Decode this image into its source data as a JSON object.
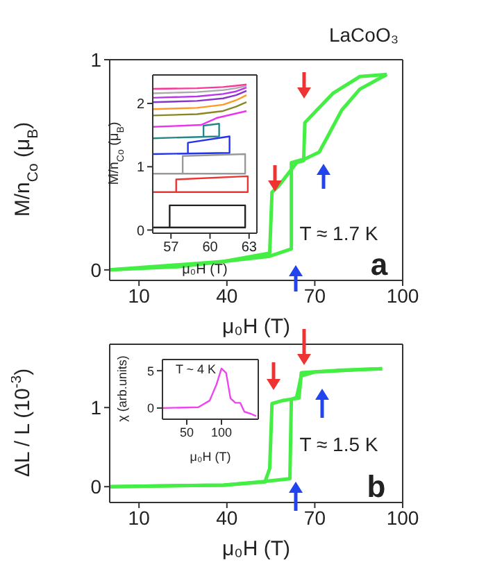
{
  "chart_data": [
    {
      "type": "line",
      "xlabel": "μ₀H (T)",
      "ylabel": "M/n$_{Co}$ (μ$_{B}$)",
      "xlim": [
        0,
        100
      ],
      "xticks": [
        10,
        40,
        70,
        100
      ],
      "ylim": [
        -0.05,
        1
      ],
      "yticks": [
        0,
        1
      ],
      "marker": "none",
      "line_style": "solid",
      "annotations": [
        "LaCoO₃",
        "T ≈ 1.7 K",
        "a"
      ],
      "series": [
        {
          "color": "#44ee44",
          "x": [
            0,
            23.5,
            38.9,
            54.6,
            62,
            62,
            67,
            71.5,
            74.6,
            79.2,
            85.4,
            94.6
          ],
          "values": [
            0,
            0.015,
            0.04,
            0.065,
            0.1,
            0.51,
            0.53,
            0.56,
            0.64,
            0.76,
            0.86,
            0.93
          ]
        },
        {
          "color": "#44ee44",
          "x": [
            94.6,
            85.4,
            76.2,
            70,
            66.6,
            66.2,
            63.8,
            57.7,
            55.4,
            54.6,
            38.9,
            0
          ],
          "values": [
            0.93,
            0.92,
            0.84,
            0.75,
            0.7,
            0.52,
            0.51,
            0.4,
            0.37,
            0.08,
            0.04,
            0
          ]
        }
      ]
    },
    {
      "type": "line",
      "xlabel": "μ₀H (T)",
      "ylabel": "M/n$_{Co}$ (μ$_{B}$)",
      "xlim": [
        55.6,
        63.6
      ],
      "xticks": [
        57,
        60,
        63
      ],
      "ylim": [
        -0.05,
        2.45
      ],
      "yticks": [
        0,
        1,
        2
      ],
      "marker": "none",
      "line_style": "solid",
      "series": [
        {
          "color": "#222222",
          "x": [
            55.6,
            62.7,
            62.7,
            56.9,
            56.9
          ],
          "values": [
            0.04,
            0.04,
            0.39,
            0.39,
            0.04
          ]
        },
        {
          "color": "#ee3333",
          "x": [
            55.6,
            62.9,
            62.9,
            57.4,
            57.4
          ],
          "values": [
            0.6,
            0.6,
            0.85,
            0.8,
            0.6
          ]
        },
        {
          "color": "#999999",
          "x": [
            55.6,
            62.7,
            62.7,
            57.9,
            57.9
          ],
          "values": [
            0.89,
            0.89,
            1.2,
            1.17,
            0.89
          ]
        },
        {
          "color": "#2233ee",
          "x": [
            55.6,
            61.5,
            61.5,
            58.3,
            58.3
          ],
          "values": [
            1.2,
            1.22,
            1.48,
            1.38,
            1.2
          ]
        },
        {
          "color": "#228888",
          "x": [
            55.6,
            60.7,
            60.7,
            59.5,
            59.5
          ],
          "values": [
            1.45,
            1.48,
            1.68,
            1.65,
            1.47
          ]
        },
        {
          "color": "#ee33ee",
          "x": [
            55.6,
            59.3,
            60.3,
            60.5,
            62.8
          ],
          "values": [
            1.63,
            1.66,
            1.75,
            1.77,
            1.88
          ]
        },
        {
          "color": "#888822",
          "x": [
            55.6,
            59,
            61,
            62,
            62.8
          ],
          "values": [
            1.81,
            1.83,
            1.88,
            1.95,
            2.02
          ]
        },
        {
          "color": "#ff9922",
          "x": [
            55.6,
            59,
            61,
            62,
            62.8
          ],
          "values": [
            1.91,
            1.93,
            1.98,
            2.05,
            2.13
          ]
        },
        {
          "color": "#8833cc",
          "x": [
            55.6,
            59,
            61,
            62,
            62.8
          ],
          "values": [
            2.02,
            2.04,
            2.08,
            2.13,
            2.2
          ]
        },
        {
          "color": "#bb33ee",
          "x": [
            55.6,
            59,
            61,
            62,
            62.8
          ],
          "values": [
            2.09,
            2.11,
            2.15,
            2.19,
            2.25
          ]
        },
        {
          "color": "#aaaaaa",
          "x": [
            55.6,
            59,
            61,
            62,
            62.8
          ],
          "values": [
            2.16,
            2.18,
            2.21,
            2.24,
            2.28
          ]
        },
        {
          "color": "#ff3399",
          "x": [
            55.6,
            59,
            61,
            62,
            62.8
          ],
          "values": [
            2.23,
            2.24,
            2.26,
            2.28,
            2.3
          ]
        }
      ]
    },
    {
      "type": "line",
      "xlabel": "μ₀H (T)",
      "ylabel": "ΔL / L (10$^{-3}$)",
      "xlim": [
        0,
        100
      ],
      "xticks": [
        10,
        40,
        70,
        100
      ],
      "ylim": [
        -0.2,
        1.8
      ],
      "yticks": [
        0,
        1
      ],
      "marker": "none",
      "line_style": "solid",
      "annotations": [
        "T ≈ 1.5 K",
        "b"
      ],
      "series": [
        {
          "color": "#44ee44",
          "x": [
            0,
            38.9,
            51.5,
            61.5,
            62,
            63.8,
            65.4,
            70,
            85.4,
            93
          ],
          "values": [
            0,
            0.02,
            0.06,
            0.1,
            1.1,
            1.13,
            1.4,
            1.45,
            1.48,
            1.49
          ]
        },
        {
          "color": "#44ee44",
          "x": [
            93,
            77.7,
            65.4,
            64.6,
            59.2,
            55.4,
            54.6,
            53,
            38.9,
            0
          ],
          "values": [
            1.49,
            1.47,
            1.44,
            1.12,
            1.09,
            1.05,
            0.23,
            0.06,
            0.02,
            0
          ]
        }
      ]
    },
    {
      "type": "line",
      "xlabel": "μ₀H (T)",
      "ylabel": "χ (arb.units)",
      "xlim": [
        15,
        153
      ],
      "xticks": [
        50,
        100
      ],
      "ylim": [
        -1.5,
        6.5
      ],
      "yticks": [
        0,
        5
      ],
      "marker": "none",
      "line_style": "solid",
      "annotations": [
        "T ~ 4 K"
      ],
      "series": [
        {
          "color": "#ee44ee",
          "x": [
            15,
            66.7,
            83,
            93,
            100,
            106.7,
            113,
            120,
            127,
            133,
            143,
            150
          ],
          "values": [
            0,
            0.1,
            1,
            3.2,
            5.3,
            4.7,
            1.3,
            0.7,
            0.7,
            -0.5,
            -0.8,
            -1.1
          ]
        }
      ]
    }
  ]
}
